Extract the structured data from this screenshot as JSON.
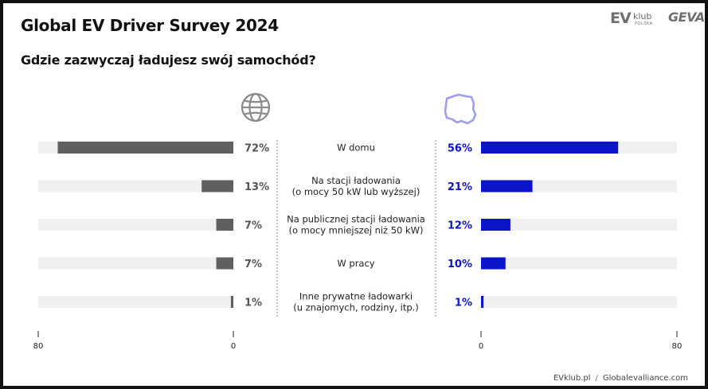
{
  "header": {
    "title": "Global EV Driver Survey 2024",
    "question": "Gdzie zazwyczaj ładujesz swój samochód?",
    "logo_ev": "EV",
    "logo_klub": "klub",
    "logo_polska": "POLSKA",
    "logo_geva": "GEVA"
  },
  "footer": {
    "left": "EVklub.pl",
    "separator": "/",
    "right": "Globalevalliance.com"
  },
  "chart_data": {
    "type": "bar",
    "title": "Gdzie zazwyczaj ładujesz swój samochód?",
    "categories": [
      [
        "W domu"
      ],
      [
        "Na stacji ładowania",
        "(o mocy 50 kW lub wyższej)"
      ],
      [
        "Na publicznej stacji ładowania",
        "(o mocy mniejszej niż 50 kW)"
      ],
      [
        "W pracy"
      ],
      [
        "Inne prywatne ładowarki",
        "(u znajomych, rodziny, itp.)"
      ]
    ],
    "series": [
      {
        "name": "Global",
        "icon": "globe-icon",
        "color": "#5f5f5f",
        "values": [
          72,
          13,
          7,
          7,
          1
        ],
        "labels": [
          "72%",
          "13%",
          "7%",
          "7%",
          "1%"
        ]
      },
      {
        "name": "Polska",
        "icon": "poland-map-icon",
        "color": "#0a14c8",
        "values": [
          56,
          21,
          12,
          10,
          1
        ],
        "labels": [
          "56%",
          "21%",
          "12%",
          "10%",
          "1%"
        ]
      }
    ],
    "axis_min": 0,
    "axis_max": 80,
    "ticks_global": [
      "80",
      "0"
    ],
    "ticks_poland": [
      "0",
      "80"
    ],
    "track_color": "#f0f0f0"
  }
}
